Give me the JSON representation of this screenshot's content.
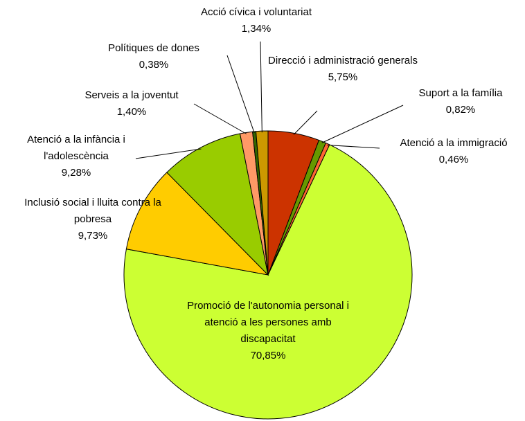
{
  "chart_data": {
    "type": "pie",
    "categories": [
      "Direcció i administració generals",
      "Suport a la família",
      "Atenció a la immigració",
      "Promoció de l'autonomia personal i atenció a les persones amb discapacitat",
      "Inclusió social i lluita contra la pobresa",
      "Atenció a la infància i l'adolescència",
      "Serveis a la joventut",
      "Polítiques de dones",
      "Acció cívica i voluntariat"
    ],
    "values": [
      5.75,
      0.82,
      0.46,
      70.85,
      9.73,
      9.28,
      1.4,
      0.38,
      1.34
    ],
    "value_labels": [
      "5,75%",
      "0,82%",
      "0,46%",
      "70,85%",
      "9,73%",
      "9,28%",
      "1,40%",
      "0,38%",
      "1,34%"
    ],
    "colors": [
      "#cc3300",
      "#669900",
      "#ff6633",
      "#ccff33",
      "#ffcc00",
      "#99cc00",
      "#ff9966",
      "#336600",
      "#cc9900"
    ]
  }
}
